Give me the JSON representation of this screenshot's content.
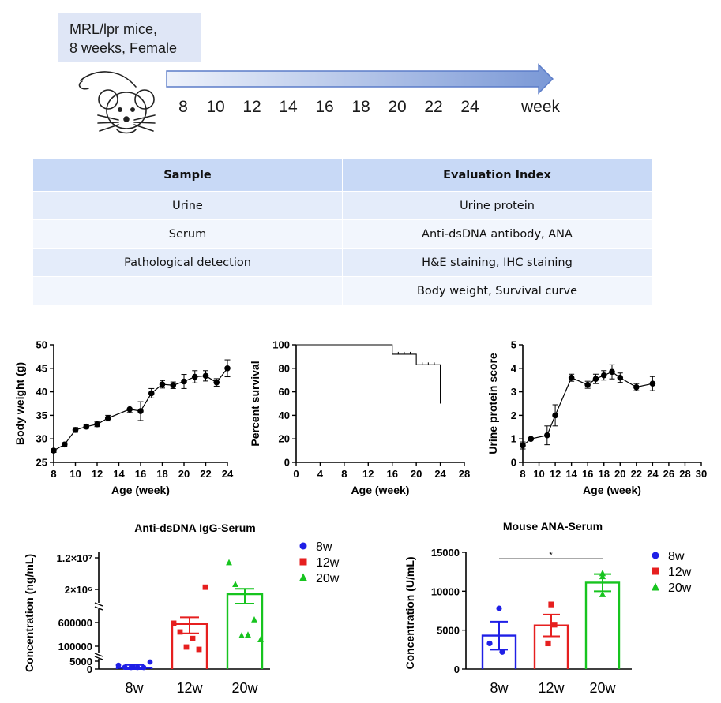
{
  "design": {
    "mouse_label_line1": "MRL/lpr mice,",
    "mouse_label_line2": "8 weeks, Female",
    "timeline_ticks": [
      "8",
      "10",
      "12",
      "14",
      "16",
      "18",
      "20",
      "22",
      "24"
    ],
    "timeline_unit": "week",
    "arrow_color": "#7a98d6"
  },
  "table": {
    "headers": [
      "Sample",
      "Evaluation Index"
    ],
    "rows": [
      [
        "Urine",
        "Urine protein"
      ],
      [
        "Serum",
        "Anti-dsDNA antibody, ANA"
      ],
      [
        "Pathological detection",
        "H&E staining, IHC staining"
      ],
      [
        "",
        "Body weight, Survival curve"
      ]
    ]
  },
  "chart_data": [
    {
      "id": "body-weight",
      "type": "line",
      "xlabel": "Age (week)",
      "ylabel": "Body weight (g)",
      "xlim": [
        8,
        24
      ],
      "ylim": [
        25,
        50
      ],
      "xticks": [
        8,
        10,
        12,
        14,
        16,
        18,
        20,
        22,
        24
      ],
      "yticks": [
        25,
        30,
        35,
        40,
        45,
        50
      ],
      "x": [
        8,
        9,
        10,
        11,
        12,
        13,
        15,
        16,
        17,
        18,
        19,
        20,
        21,
        22,
        23,
        24
      ],
      "y": [
        27.5,
        28.8,
        31.9,
        32.6,
        33.1,
        34.4,
        36.3,
        35.9,
        39.7,
        41.6,
        41.4,
        42.2,
        43.2,
        43.4,
        42.0,
        45.0
      ],
      "err": [
        0.4,
        0.4,
        0.5,
        0.4,
        0.5,
        0.6,
        0.7,
        2.0,
        1.0,
        0.8,
        0.7,
        1.5,
        1.3,
        1.1,
        0.8,
        1.8
      ]
    },
    {
      "id": "survival",
      "type": "line",
      "xlabel": "Age (week)",
      "ylabel": "Percent survival",
      "xlim": [
        0,
        28
      ],
      "ylim": [
        0,
        100
      ],
      "xticks": [
        0,
        4,
        8,
        12,
        16,
        20,
        24,
        28
      ],
      "yticks": [
        0,
        20,
        40,
        60,
        80,
        100
      ],
      "steps": [
        [
          0,
          100
        ],
        [
          16,
          100
        ],
        [
          16,
          92
        ],
        [
          20,
          92
        ],
        [
          20,
          83
        ],
        [
          24,
          83
        ],
        [
          24,
          50
        ]
      ],
      "censored": [
        [
          17,
          92
        ],
        [
          18,
          92
        ],
        [
          19,
          92
        ],
        [
          21,
          83
        ],
        [
          22,
          83
        ],
        [
          23,
          83
        ]
      ]
    },
    {
      "id": "urine-protein",
      "type": "line",
      "xlabel": "Age (week)",
      "ylabel": "Urine protein score",
      "xlim": [
        8,
        30
      ],
      "ylim": [
        0,
        5
      ],
      "xticks": [
        8,
        10,
        12,
        14,
        16,
        18,
        20,
        22,
        24,
        26,
        28,
        30
      ],
      "yticks": [
        0,
        1,
        2,
        3,
        4,
        5
      ],
      "x": [
        8,
        9,
        11,
        12,
        14,
        16,
        17,
        18,
        19,
        20,
        22,
        24
      ],
      "y": [
        0.72,
        1.0,
        1.15,
        2.0,
        3.6,
        3.3,
        3.55,
        3.7,
        3.85,
        3.6,
        3.2,
        3.35
      ],
      "err": [
        0.15,
        0.05,
        0.4,
        0.45,
        0.15,
        0.15,
        0.2,
        0.2,
        0.3,
        0.2,
        0.15,
        0.3
      ]
    },
    {
      "id": "anti-dsdna",
      "type": "bar",
      "title": "Anti-dsDNA IgG-Serum",
      "ylabel": "Concentration (ng/mL)",
      "categories": [
        "8w",
        "12w",
        "20w"
      ],
      "colors": [
        "#1f1fe6",
        "#e61f1f",
        "#17c41f"
      ],
      "yticklabels": [
        "0",
        "5000",
        "100000",
        "600000",
        "2×10⁶",
        "1.2×10⁷"
      ],
      "legend": [
        "8w",
        "12w",
        "20w"
      ],
      "means": [
        800,
        560000,
        1800000
      ],
      "sem": [
        1800,
        260000,
        400000
      ],
      "points": [
        [
          2400,
          -1200,
          -600,
          300,
          -400,
          4500
        ],
        [
          580000,
          340000,
          95000,
          160000,
          80000,
          2700000
        ],
        [
          10500000,
          3600000,
          240000,
          260000,
          720000,
          130000
        ]
      ]
    },
    {
      "id": "mouse-ana",
      "type": "bar",
      "title": "Mouse ANA-Serum",
      "ylabel": "Concentration (U/mL)",
      "categories": [
        "8w",
        "12w",
        "20w"
      ],
      "colors": [
        "#1f1fe6",
        "#e61f1f",
        "#17c41f"
      ],
      "ylim": [
        0,
        15000
      ],
      "yticks": [
        0,
        5000,
        10000,
        15000
      ],
      "legend": [
        "8w",
        "12w",
        "20w"
      ],
      "means": [
        4300,
        5600,
        11100
      ],
      "sem": [
        1800,
        1400,
        1100
      ],
      "points": [
        [
          7800,
          3300,
          2200
        ],
        [
          8300,
          5700,
          3300
        ],
        [
          12300,
          11900,
          9600
        ]
      ],
      "significance": "*"
    }
  ]
}
